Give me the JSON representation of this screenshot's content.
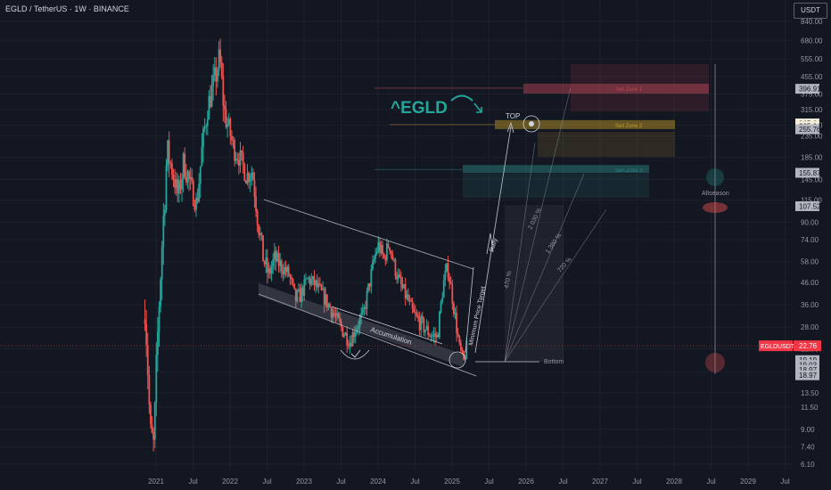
{
  "header": {
    "title": "EGLD / TetherUS · 1W · BINANCE",
    "currency": "USDT"
  },
  "colors": {
    "bg": "#131722",
    "up": "#26a69a",
    "down": "#ef5350",
    "grid": "#1c202b",
    "axis_text": "#9598a1",
    "sell1": "#c44a56",
    "sell2": "#c9a227",
    "sell3": "#2a8c88",
    "label_bg": "#9598a1",
    "price_tag": "#f23645"
  },
  "chart_data": {
    "type": "candlestick",
    "symbol": "EGLDUSDT",
    "ylim": [
      6.1,
      840
    ],
    "y_scale": "log",
    "price_axis_labels": [
      "840.00",
      "680.00",
      "555.00",
      "455.00",
      "375.00",
      "315.00",
      "265.00",
      "235.00",
      "185.00",
      "145.00",
      "115.00",
      "90.00",
      "74.00",
      "58.00",
      "46.00",
      "36.00",
      "28.00",
      "22.00",
      "17.00",
      "13.50",
      "11.50",
      "9.00",
      "7.40",
      "6.10"
    ],
    "time_axis_labels": [
      "2021",
      "Jul",
      "2022",
      "Jul",
      "2023",
      "Jul",
      "2024",
      "Jul",
      "2025",
      "Jul",
      "2026",
      "Jul",
      "2027",
      "Jul",
      "2028",
      "Jul",
      "2029",
      "Jul"
    ],
    "price_markers": [
      {
        "label": "396.91",
        "value": 396.91,
        "style": "grey"
      },
      {
        "label": "265.64",
        "value": 270,
        "style": "light"
      },
      {
        "label": "265.64",
        "value": 262,
        "style": "light"
      },
      {
        "label": "255.76",
        "value": 253,
        "style": "grey"
      },
      {
        "label": "155.87",
        "value": 155.87,
        "style": "grey"
      },
      {
        "label": "107.52",
        "value": 107.52,
        "style": "grey"
      },
      {
        "label": "19.19",
        "value": 19.4,
        "style": "grey"
      },
      {
        "label": "19.03",
        "value": 18.4,
        "style": "grey"
      },
      {
        "label": "18.97",
        "value": 17.4,
        "style": "grey"
      },
      {
        "label": "18.97",
        "value": 16.4,
        "style": "grey"
      }
    ],
    "last_price": {
      "symbol": "EGLDUSDT",
      "value": "22.76"
    },
    "zones": [
      {
        "label": "Sell Zone 1",
        "price_low": 330,
        "price_high": 420
      },
      {
        "label": "Sell Zone 2",
        "price_low": 225,
        "price_high": 280
      },
      {
        "label": "Sell Zone 3",
        "price_low": 140,
        "price_high": 170
      }
    ],
    "annotations": {
      "logo_text": "^EGLD",
      "top": "TOP",
      "rally": "Rally",
      "accumulation": "Accumulation",
      "min_target": "Minimum Price Target",
      "bottom": "Bottom",
      "altseason": "Altseason",
      "fan_labels": [
        "470 %",
        "2 030 %",
        "1 380 %",
        "720 %"
      ]
    }
  }
}
